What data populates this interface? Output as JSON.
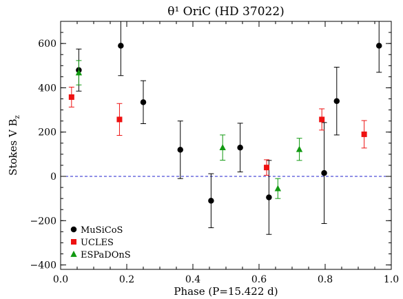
{
  "chart_data": {
    "type": "scatter",
    "title": "θ¹ OriC (HD 37022)",
    "xlabel": "Phase (P=15.422 d)",
    "ylabel": "Stokes V B",
    "ylabel_subscript": "z",
    "xlim": [
      0.0,
      1.0
    ],
    "ylim": [
      -420,
      700
    ],
    "xticks": [
      0.0,
      0.2,
      0.4,
      0.6,
      0.8,
      1.0
    ],
    "xtick_labels": [
      "0.0",
      "0.2",
      "0.4",
      "0.6",
      "0.8",
      "1.0"
    ],
    "yticks": [
      -400,
      -200,
      0,
      200,
      400,
      600
    ],
    "ytick_labels": [
      "−400",
      "−200",
      "0",
      "200",
      "400",
      "600"
    ],
    "reference_line": {
      "y": 0,
      "style": "dashed",
      "color": "#2222cc"
    },
    "legend_position": "bottom-left",
    "series": [
      {
        "name": "MuSiCoS",
        "marker": "circle",
        "color": "#000000",
        "points": [
          {
            "x": 0.055,
            "y": 480,
            "err": 95
          },
          {
            "x": 0.182,
            "y": 590,
            "err": 135
          },
          {
            "x": 0.25,
            "y": 335,
            "err": 97
          },
          {
            "x": 0.362,
            "y": 120,
            "err": 130
          },
          {
            "x": 0.455,
            "y": -110,
            "err": 122
          },
          {
            "x": 0.543,
            "y": 130,
            "err": 110
          },
          {
            "x": 0.63,
            "y": -95,
            "err": 167
          },
          {
            "x": 0.797,
            "y": 15,
            "err": 228
          },
          {
            "x": 0.835,
            "y": 340,
            "err": 153
          },
          {
            "x": 0.963,
            "y": 590,
            "err": 120
          }
        ]
      },
      {
        "name": "UCLES",
        "marker": "square",
        "color": "#ee1111",
        "points": [
          {
            "x": 0.033,
            "y": 358,
            "err": 45
          },
          {
            "x": 0.178,
            "y": 257,
            "err": 72
          },
          {
            "x": 0.623,
            "y": 40,
            "err": 35
          },
          {
            "x": 0.79,
            "y": 257,
            "err": 48
          },
          {
            "x": 0.918,
            "y": 190,
            "err": 62
          }
        ]
      },
      {
        "name": "ESPaDOnS",
        "marker": "triangle",
        "color": "#119911",
        "points": [
          {
            "x": 0.055,
            "y": 468,
            "err": 55
          },
          {
            "x": 0.49,
            "y": 130,
            "err": 57
          },
          {
            "x": 0.657,
            "y": -55,
            "err": 45
          },
          {
            "x": 0.722,
            "y": 122,
            "err": 50
          }
        ]
      }
    ]
  }
}
